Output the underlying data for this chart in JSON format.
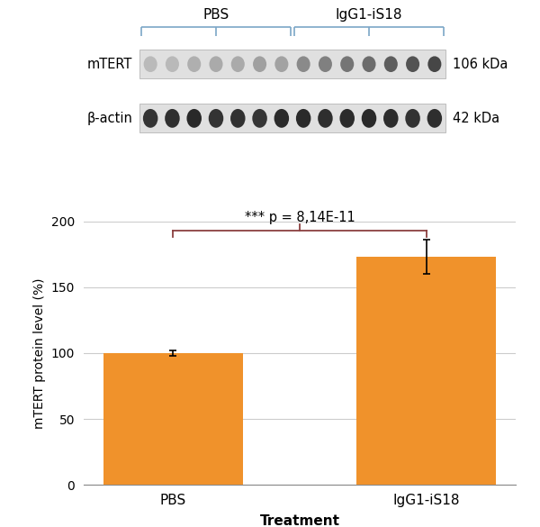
{
  "categories": [
    "PBS",
    "IgG1-iS18"
  ],
  "values": [
    100,
    173
  ],
  "errors": [
    2,
    13
  ],
  "bar_color": "#F0922B",
  "bar_width": 0.55,
  "ylim": [
    0,
    200
  ],
  "yticks": [
    0,
    50,
    100,
    150,
    200
  ],
  "xlabel": "Treatment",
  "ylabel": "mTERT protein level (%)",
  "significance_text": "*** p = 8,14E-11",
  "bracket_color": "#8B4040",
  "blot_label_mtert": "mTERT",
  "blot_label_bactin": "β-actin",
  "blot_kda_mtert": "106 kDa",
  "blot_kda_bactin": "42 kDa",
  "blot_group_pbs": "PBS",
  "blot_group_igg": "IgG1-iS18",
  "bracket_color_blot": "#7BA7C7",
  "background_color": "#FFFFFF",
  "grid_color": "#CCCCCC",
  "n_lanes": 14,
  "n_pbs": 7,
  "n_igg": 7
}
